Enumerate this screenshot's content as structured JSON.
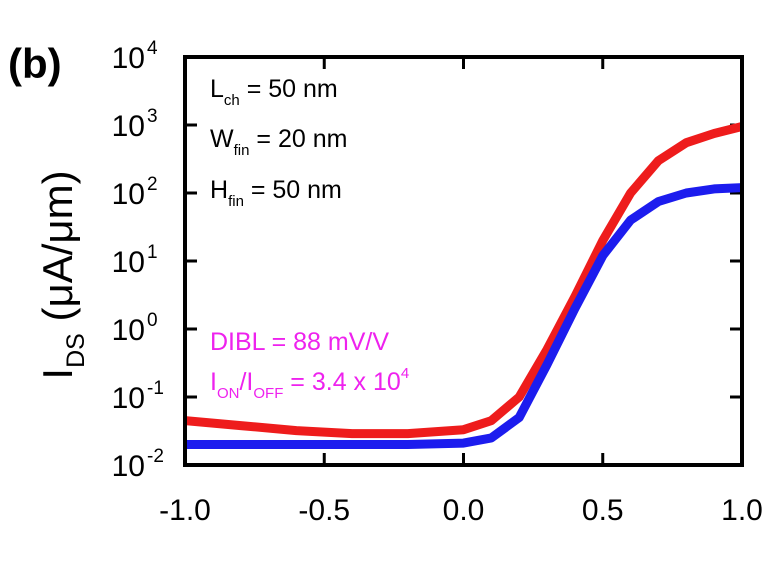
{
  "chart_data": {
    "type": "line",
    "panel_label": "(b)",
    "y_label": [
      {
        "t": "I"
      },
      {
        "t": "DS",
        "sub": true
      },
      {
        "t": " (μA/μm)"
      }
    ],
    "x": [
      -1,
      -0.8,
      -0.6,
      -0.4,
      -0.2,
      0,
      0.1,
      0.2,
      0.3,
      0.4,
      0.5,
      0.6,
      0.7,
      0.8,
      0.9,
      1.0
    ],
    "series": [
      {
        "color": "#ee1c1c",
        "values": [
          0.045,
          0.038,
          0.032,
          0.029,
          0.029,
          0.033,
          0.045,
          0.1,
          0.5,
          3,
          20,
          100,
          300,
          550,
          750,
          950
        ]
      },
      {
        "color": "#1c1cee",
        "values": [
          0.02,
          0.02,
          0.02,
          0.02,
          0.02,
          0.021,
          0.025,
          0.05,
          0.3,
          2,
          12,
          40,
          75,
          100,
          115,
          120
        ]
      }
    ],
    "log_y": true,
    "xlim": [
      -1.0,
      1.0
    ],
    "ylim": [
      0.01,
      10000
    ],
    "xticks": [
      {
        "value": -1,
        "label": "-1.0"
      },
      {
        "value": -0.5,
        "label": "-0.5"
      },
      {
        "value": 0,
        "label": "0.0"
      },
      {
        "value": 0.5,
        "label": "0.5"
      },
      {
        "value": 1,
        "label": "1.0"
      }
    ],
    "yticks": [
      {
        "value": 0.01,
        "label": "10",
        "exponent": "-2"
      },
      {
        "value": 0.1,
        "label": "10",
        "exponent": "-1"
      },
      {
        "value": 1,
        "label": "10",
        "exponent": "0"
      },
      {
        "value": 10,
        "label": "10",
        "exponent": "1"
      },
      {
        "value": 100,
        "label": "10",
        "exponent": "2"
      },
      {
        "value": 1000,
        "label": "10",
        "exponent": "3"
      },
      {
        "value": 10000,
        "label": "10",
        "exponent": "4"
      }
    ],
    "annotations": [
      {
        "color": "#000000",
        "runs": [
          {
            "t": "L"
          },
          {
            "t": "ch",
            "sub": true
          },
          {
            "t": " = 50 nm"
          }
        ]
      },
      {
        "color": "#000000",
        "runs": [
          {
            "t": "W"
          },
          {
            "t": "fin",
            "sub": true
          },
          {
            "t": " = 20 nm"
          }
        ]
      },
      {
        "color": "#000000",
        "runs": [
          {
            "t": "H"
          },
          {
            "t": "fin",
            "sub": true
          },
          {
            "t": " = 50 nm"
          }
        ]
      },
      {
        "color": "#ee22ee",
        "runs": [
          {
            "t": "DIBL = 88 mV/V"
          }
        ]
      },
      {
        "color": "#ee22ee",
        "runs": [
          {
            "t": "I"
          },
          {
            "t": "ON",
            "sub": true
          },
          {
            "t": "/I"
          },
          {
            "t": "OFF",
            "sub": true
          },
          {
            "t": " = 3.4 x 10"
          },
          {
            "t": "4",
            "sup": true
          }
        ]
      }
    ]
  }
}
